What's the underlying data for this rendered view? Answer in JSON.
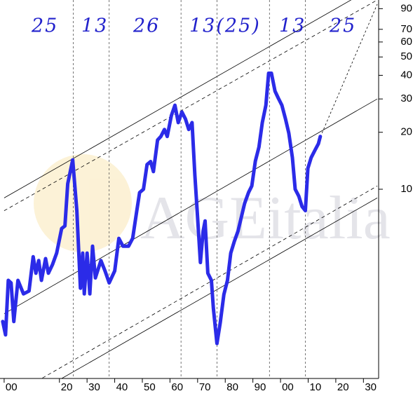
{
  "chart_data": {
    "type": "line",
    "color": "#2b2be8",
    "log_y": true,
    "xlim": [
      1898.5,
      2035.5
    ],
    "ylim": [
      1,
      100
    ],
    "xticks": [
      {
        "value": 1900,
        "label": "00"
      },
      {
        "value": 1920,
        "label": "20"
      },
      {
        "value": 1930,
        "label": "30"
      },
      {
        "value": 1940,
        "label": "40"
      },
      {
        "value": 1950,
        "label": "50"
      },
      {
        "value": 1960,
        "label": "60"
      },
      {
        "value": 1970,
        "label": "70"
      },
      {
        "value": 1980,
        "label": "80"
      },
      {
        "value": 1990,
        "label": "90"
      },
      {
        "value": 2000,
        "label": "00"
      },
      {
        "value": 2010,
        "label": "10"
      },
      {
        "value": 2020,
        "label": "20"
      },
      {
        "value": 2030,
        "label": "30"
      }
    ],
    "yticks": [
      10,
      20,
      30,
      40,
      50,
      60,
      70,
      90
    ],
    "x": [
      1899.5,
      1900.5,
      1901.5,
      1902.5,
      1903.5,
      1905,
      1907,
      1909,
      1910.5,
      1911.5,
      1912.5,
      1913.5,
      1915,
      1916,
      1917.5,
      1919,
      1920.8,
      1922,
      1923,
      1924.8,
      1926.3,
      1927.6,
      1928.4,
      1929,
      1930,
      1931,
      1932,
      1933,
      1935,
      1936.5,
      1938,
      1940,
      1941.5,
      1943,
      1945,
      1946.5,
      1948,
      1949,
      1950.4,
      1951.7,
      1953,
      1954,
      1955.5,
      1956.7,
      1958,
      1959,
      1960.5,
      1961.8,
      1963,
      1964.3,
      1965.6,
      1966.8,
      1968,
      1969,
      1970,
      1971,
      1972,
      1972.7,
      1973.7,
      1975,
      1975.7,
      1977,
      1978.2,
      1979.5,
      1980.8,
      1982,
      1983.3,
      1984.6,
      1985.8,
      1987,
      1988.4,
      1989.6,
      1990.9,
      1992.2,
      1993.4,
      1994.7,
      1995.7,
      1996.7,
      1998,
      1999.2,
      2000.5,
      2001.8,
      2003,
      2004.3,
      2005.3,
      2006.6,
      2007.8,
      2009,
      2009.9,
      2011.1,
      2012.4,
      2013.7,
      2014.4
    ],
    "values": [
      2.0,
      1.7,
      3.3,
      3.2,
      2.0,
      3.3,
      2.8,
      2.9,
      4.4,
      3.6,
      4.2,
      3.3,
      4.3,
      3.6,
      4.0,
      4.6,
      6.2,
      6.4,
      10.7,
      14.3,
      7.7,
      3.0,
      4.6,
      2.8,
      4.6,
      2.8,
      5.0,
      3.4,
      4.2,
      3.7,
      3.2,
      3.7,
      5.5,
      5.0,
      5.0,
      5.5,
      7.7,
      9.6,
      10,
      13.5,
      14.0,
      12.4,
      18.2,
      19.0,
      20.7,
      19.0,
      24.5,
      27.8,
      22.5,
      25.6,
      23.5,
      20.7,
      22.5,
      11.9,
      7.1,
      4.1,
      6.0,
      6.8,
      3.6,
      3.3,
      2.35,
      1.53,
      1.97,
      2.78,
      3.3,
      4.6,
      5.3,
      6.0,
      7.1,
      8.4,
      9.6,
      10.4,
      14.1,
      16.7,
      22.5,
      27.8,
      41,
      41,
      33,
      30.3,
      27.8,
      23.5,
      19.8,
      14.7,
      10,
      9.2,
      8.1,
      7.7,
      12.9,
      14.7,
      16.0,
      17.4,
      19.0
    ],
    "trend_lines": [
      {
        "style": "solid",
        "points": [
          [
            1900,
            9.0
          ],
          [
            2035,
            120
          ]
        ]
      },
      {
        "style": "dashed",
        "points": [
          [
            1900,
            7.7
          ],
          [
            2035,
            100
          ]
        ]
      },
      {
        "style": "solid",
        "points": [
          [
            1900,
            2.2
          ],
          [
            2035,
            30
          ]
        ]
      },
      {
        "style": "dashed",
        "points": [
          [
            1900,
            0.77
          ],
          [
            2035,
            10.4
          ]
        ]
      },
      {
        "style": "solid",
        "points": [
          [
            1900,
            0.67
          ],
          [
            2035,
            9.0
          ]
        ]
      },
      {
        "style": "dotted",
        "points": [
          [
            2015,
            19.8
          ],
          [
            2035,
            95
          ]
        ]
      }
    ],
    "cycle_lines": [
      1925,
      1938,
      1964,
      1977,
      1996,
      2009
    ],
    "annotations": [
      "25",
      "13",
      "26",
      "13(25)",
      "13",
      "25"
    ],
    "watermark": "AGEitalia"
  }
}
